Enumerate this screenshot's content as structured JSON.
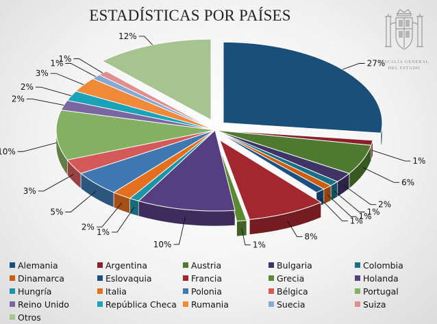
{
  "title": "ESTADÍSTICAS POR PAÍSES",
  "emblem": {
    "line1": "FISCALÍA GENERAL",
    "line2": "DEL ESTADO"
  },
  "chart_data": {
    "type": "pie",
    "title": "ESTADÍSTICAS POR PAÍSES",
    "legend_position": "bottom",
    "start_angle_deg": 0,
    "slices": [
      {
        "label": "Alemania",
        "value": 27,
        "data_label": "27%",
        "color": "#1a4f79",
        "exploded": true
      },
      {
        "label": "Argentina",
        "value": 1,
        "data_label": "1%",
        "color": "#8b1f2a",
        "exploded": false
      },
      {
        "label": "Austria",
        "value": 6,
        "data_label": "6%",
        "color": "#4e7a2f",
        "exploded": false
      },
      {
        "label": "Bulgaria",
        "value": 2,
        "data_label": "2%",
        "color": "#3f3466",
        "exploded": false
      },
      {
        "label": "Colombia",
        "value": 1,
        "data_label": "1%",
        "color": "#1a6f86",
        "exploded": false
      },
      {
        "label": "Dinamarca",
        "value": 1,
        "data_label": "1%",
        "color": "#cc5e10",
        "exploded": false
      },
      {
        "label": "Eslovaquia",
        "value": 1,
        "data_label": "1%",
        "color": "#1c4f82",
        "exploded": false
      },
      {
        "label": "Francia",
        "value": 8,
        "data_label": "8%",
        "color": "#a3272e",
        "exploded": true
      },
      {
        "label": "Grecia",
        "value": 1,
        "data_label": "1%",
        "color": "#5b8a33",
        "exploded": true
      },
      {
        "label": "Holanda",
        "value": 10,
        "data_label": "10%",
        "color": "#563f80",
        "exploded": false
      },
      {
        "label": "Hungría",
        "value": 1,
        "data_label": "1%",
        "color": "#1d93a8",
        "exploded": false
      },
      {
        "label": "Italia",
        "value": 2,
        "data_label": "2%",
        "color": "#e46f1f",
        "exploded": false
      },
      {
        "label": "Polonia",
        "value": 5,
        "data_label": "5%",
        "color": "#3f78b0",
        "exploded": false
      },
      {
        "label": "Bélgica",
        "value": 3,
        "data_label": "3%",
        "color": "#d45a5a",
        "exploded": false
      },
      {
        "label": "Portugal",
        "value": 10,
        "data_label": "10%",
        "color": "#84b062",
        "exploded": false
      },
      {
        "label": "Reino Unido",
        "value": 2,
        "data_label": "2%",
        "color": "#7a66a1",
        "exploded": false
      },
      {
        "label": "República Checa",
        "value": 2,
        "data_label": "2%",
        "color": "#1aa3b8",
        "exploded": false
      },
      {
        "label": "Rumania",
        "value": 3,
        "data_label": "3%",
        "color": "#f08a3a",
        "exploded": false
      },
      {
        "label": "Suecia",
        "value": 1,
        "data_label": "1%",
        "color": "#86a8d3",
        "exploded": false
      },
      {
        "label": "Suiza",
        "value": 1,
        "data_label": "1%",
        "color": "#e08e8e",
        "exploded": false
      },
      {
        "label": "Otros",
        "value": 12,
        "data_label": "12%",
        "color": "#a6c48f",
        "exploded": true
      }
    ]
  }
}
